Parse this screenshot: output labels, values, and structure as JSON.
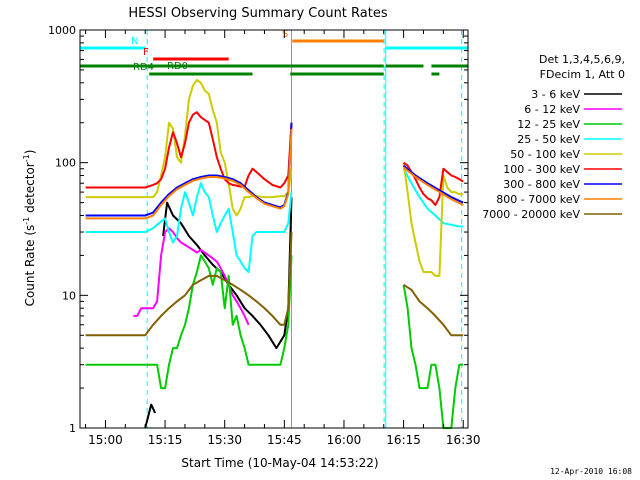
{
  "chart_data": {
    "type": "line",
    "title": "HESSI Observing Summary Count Rates",
    "xlabel": "Start Time (10-May-04 14:53:22)",
    "ylabel_main": "Count Rate (s",
    "ylabel_sup1": "-1",
    "ylabel_mid": " detector",
    "ylabel_sup2": "-1",
    "ylabel_end": ")",
    "yscale": "log",
    "ylim": [
      1,
      1000
    ],
    "xlim_minutes": [
      -6.4,
      91.2
    ],
    "x_ticks": [
      {
        "label": "15:00",
        "min": 0
      },
      {
        "label": "15:15",
        "min": 15
      },
      {
        "label": "15:30",
        "min": 30
      },
      {
        "label": "15:45",
        "min": 45
      },
      {
        "label": "16:00",
        "min": 60
      },
      {
        "label": "16:15",
        "min": 75
      },
      {
        "label": "16:30",
        "min": 90
      }
    ],
    "y_ticks": [
      {
        "label": "1",
        "v": 1
      },
      {
        "label": "10",
        "v": 10
      },
      {
        "label": "100",
        "v": 100
      },
      {
        "label": "1000",
        "v": 1000
      }
    ],
    "legend_header": [
      "Det 1,3,4,5,6,9,",
      "FDecim 1, Att 0"
    ],
    "series": [
      {
        "name": "3 - 6 keV",
        "color": "#000000",
        "x": [
          -5,
          3,
          10,
          11.5,
          12.5,
          13.5,
          14.5,
          15.5,
          17,
          19,
          21,
          23,
          25,
          27,
          29,
          31,
          33,
          35,
          37,
          39,
          41,
          43,
          45,
          46,
          46.8
        ],
        "y": [
          null,
          null,
          1,
          1.5,
          1.3,
          null,
          28,
          50,
          40,
          35,
          28,
          24,
          20,
          17,
          15,
          12,
          10,
          8,
          7,
          6,
          5,
          4,
          5,
          8,
          55
        ]
      },
      {
        "name": "6 - 12 keV",
        "color": "#ff00ff",
        "x": [
          7,
          8,
          9,
          10,
          11,
          12,
          13,
          14,
          15,
          16,
          17,
          18,
          19,
          20,
          21,
          22,
          23,
          24,
          25,
          26,
          27,
          28,
          29,
          30,
          31,
          32,
          33,
          34,
          35,
          36
        ],
        "y": [
          7,
          7,
          8,
          8,
          8,
          8,
          9,
          20,
          30,
          32,
          30,
          27,
          25,
          24,
          23,
          22,
          21,
          22,
          21,
          20,
          19,
          18,
          16,
          14,
          12,
          10,
          9,
          8,
          7,
          6
        ]
      },
      {
        "name": "12 - 25 keV",
        "color": "#00cc00",
        "x": [
          -5,
          0,
          5,
          10,
          13,
          14,
          15,
          16,
          17,
          18,
          19,
          20,
          21,
          22,
          23,
          24,
          25,
          26,
          27,
          28,
          29,
          30,
          31,
          32,
          33,
          34,
          35,
          36,
          37,
          38,
          40,
          42,
          44,
          45,
          46,
          46.8,
          null,
          75,
          76,
          77,
          78,
          79,
          80,
          81,
          82,
          83,
          84,
          85,
          86,
          87,
          88,
          89,
          90
        ],
        "y": [
          3,
          3,
          3,
          3,
          3,
          2,
          2,
          3,
          4,
          4,
          5,
          6,
          8,
          12,
          15,
          20,
          18,
          16,
          12,
          16,
          15,
          8,
          14,
          6,
          7,
          5,
          4,
          3,
          3,
          3,
          3,
          3,
          3,
          4,
          6,
          20,
          null,
          12,
          8,
          4,
          3,
          2,
          2,
          2,
          3,
          3,
          2,
          1,
          1,
          1,
          2,
          3,
          3
        ]
      },
      {
        "name": "25 - 50 keV",
        "color": "#00ffff",
        "x": [
          -5,
          10,
          12,
          13,
          14,
          15,
          16,
          17,
          18,
          19,
          20,
          21,
          22,
          23,
          24,
          25,
          26,
          27,
          28,
          29,
          30,
          31,
          32,
          33,
          34,
          35,
          36,
          37,
          38,
          40,
          42,
          44,
          45,
          46,
          46.8,
          null,
          75,
          77,
          79,
          81,
          83,
          85,
          87,
          89,
          90
        ],
        "y": [
          30,
          30,
          32,
          34,
          36,
          38,
          30,
          25,
          28,
          45,
          60,
          50,
          40,
          55,
          70,
          60,
          55,
          40,
          30,
          35,
          40,
          45,
          30,
          20,
          18,
          16,
          15,
          28,
          30,
          30,
          30,
          30,
          30,
          35,
          60,
          null,
          90,
          70,
          55,
          45,
          40,
          35,
          34,
          33,
          33
        ]
      },
      {
        "name": "50 - 100 keV",
        "color": "#cccc00",
        "x": [
          -5,
          10,
          12,
          13,
          14,
          15,
          16,
          17,
          18,
          19,
          20,
          21,
          22,
          23,
          24,
          25,
          26,
          27,
          28,
          29,
          30,
          31,
          32,
          33,
          34,
          35,
          36,
          37,
          38,
          40,
          42,
          44,
          45,
          46,
          46.8,
          null,
          75,
          76,
          77,
          78,
          79,
          80,
          81,
          82,
          83,
          84,
          85,
          86,
          87,
          88,
          89,
          90
        ],
        "y": [
          55,
          55,
          55,
          60,
          80,
          110,
          200,
          180,
          110,
          100,
          160,
          300,
          380,
          420,
          400,
          350,
          330,
          250,
          200,
          120,
          100,
          70,
          45,
          40,
          45,
          55,
          55,
          56,
          56,
          55,
          55,
          56,
          56,
          60,
          90,
          null,
          100,
          60,
          35,
          25,
          18,
          15,
          15,
          15,
          14,
          14,
          80,
          65,
          60,
          60,
          58,
          58
        ]
      },
      {
        "name": "100 - 300 keV",
        "color": "#ff0000",
        "x": [
          -5,
          5,
          10,
          12,
          13,
          14,
          15,
          16,
          17,
          18,
          19,
          20,
          21,
          22,
          23,
          24,
          25,
          26,
          27,
          28,
          29,
          30,
          31,
          32,
          33,
          34,
          35,
          36,
          37,
          38,
          40,
          42,
          44,
          45,
          46,
          46.8,
          null,
          75,
          76,
          77,
          78,
          79,
          80,
          81,
          82,
          83,
          84,
          85,
          86,
          87,
          88,
          89,
          90
        ],
        "y": [
          65,
          65,
          65,
          68,
          70,
          75,
          90,
          130,
          170,
          140,
          110,
          140,
          200,
          230,
          240,
          220,
          210,
          200,
          150,
          110,
          90,
          75,
          70,
          68,
          67,
          66,
          66,
          80,
          90,
          85,
          75,
          68,
          65,
          70,
          80,
          200,
          null,
          100,
          95,
          85,
          75,
          65,
          58,
          54,
          52,
          48,
          55,
          90,
          85,
          80,
          78,
          75,
          72
        ]
      },
      {
        "name": "300 - 800 keV",
        "color": "#0000ff",
        "x": [
          -5,
          10,
          12,
          14,
          16,
          18,
          20,
          22,
          24,
          26,
          28,
          30,
          32,
          34,
          36,
          38,
          40,
          42,
          44,
          45,
          46,
          46.8,
          null,
          75,
          78,
          81,
          84,
          87,
          90
        ],
        "y": [
          40,
          40,
          42,
          50,
          58,
          65,
          70,
          75,
          78,
          80,
          80,
          78,
          75,
          70,
          62,
          55,
          50,
          48,
          46,
          48,
          60,
          200,
          null,
          95,
          80,
          70,
          62,
          55,
          50
        ]
      },
      {
        "name": "800 - 7000 keV",
        "color": "#ff8000",
        "x": [
          -5,
          10,
          12,
          14,
          16,
          18,
          20,
          22,
          24,
          26,
          28,
          30,
          32,
          34,
          36,
          38,
          40,
          42,
          44,
          45,
          46,
          46.8,
          null,
          75,
          78,
          81,
          84,
          87,
          90
        ],
        "y": [
          38,
          38,
          40,
          48,
          56,
          63,
          68,
          73,
          76,
          78,
          78,
          76,
          73,
          68,
          60,
          54,
          49,
          47,
          45,
          47,
          58,
          180,
          null,
          92,
          78,
          68,
          60,
          53,
          48
        ]
      },
      {
        "name": "7000 - 20000 keV",
        "color": "#806000",
        "x": [
          -5,
          8,
          10,
          12,
          14,
          16,
          18,
          20,
          22,
          24,
          26,
          28,
          30,
          32,
          34,
          36,
          38,
          40,
          42,
          44,
          45,
          46,
          46.8,
          null,
          75,
          77,
          79,
          81,
          83,
          85,
          87,
          89,
          90
        ],
        "y": [
          5,
          5,
          5,
          6,
          7,
          8,
          9,
          10,
          12,
          13,
          14,
          14,
          13,
          12,
          11,
          10,
          9,
          8,
          7,
          6,
          6,
          8,
          30,
          null,
          12,
          11,
          9,
          8,
          7,
          6,
          5,
          5,
          5
        ]
      }
    ],
    "flag_bars": [
      {
        "label": "N",
        "color": "#00ffff",
        "row": 0,
        "segments": [
          [
            -6.4,
            10
          ],
          [
            70.5,
            91.2
          ]
        ]
      },
      {
        "label": "F",
        "color": "#ff0000",
        "row": 1,
        "segments": [
          [
            12,
            31
          ]
        ]
      },
      {
        "label": "RD0",
        "color": "#008000",
        "row": 2,
        "segments": [
          [
            -6.4,
            46.5
          ],
          [
            46.5,
            70
          ],
          [
            70.5,
            80
          ],
          [
            82,
            91.2
          ]
        ]
      },
      {
        "label": "RD4",
        "color": "#008000",
        "row": 3,
        "segments": [
          [
            11,
            37
          ],
          [
            46.5,
            70
          ],
          [
            82,
            84
          ]
        ]
      },
      {
        "label": "S",
        "color": "#ff8000",
        "row": 4,
        "segments": [
          [
            47,
            70
          ]
        ]
      }
    ],
    "vlines": [
      {
        "min": -6.4,
        "color": "#00ffff",
        "style": "solid"
      },
      {
        "min": 10.5,
        "color": "#00ffff",
        "style": "dash"
      },
      {
        "min": 46.8,
        "color": "#ff8000",
        "style": "solid"
      },
      {
        "min": 70.1,
        "color": "#00ffff",
        "style": "dash"
      },
      {
        "min": 70.5,
        "color": "#00ffff",
        "style": "solid"
      },
      {
        "min": 89.6,
        "color": "#00ffff",
        "style": "dash"
      }
    ]
  },
  "footer": "12-Apr-2010 16:08"
}
